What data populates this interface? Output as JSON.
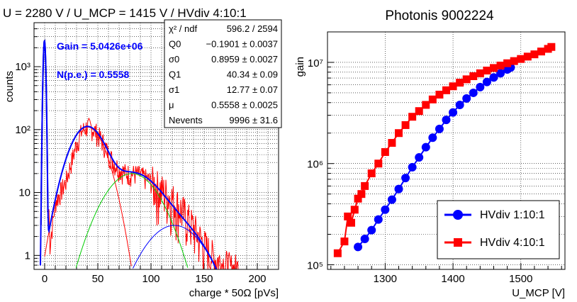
{
  "left": {
    "title": "U = 2280 V / U_MCP = 1415 V / HVdiv 4:10:1",
    "ylabel": "counts",
    "xlabel": "charge * 50Ω  [pVs]",
    "gain_text": "Gain = 5.0426e+06",
    "npe_text": "N(p.e.) = 0.5558",
    "stats": [
      {
        "name": "χ² / ndf",
        "value": "596.2 / 2594"
      },
      {
        "name": "Q0",
        "value": "−0.1901 ± 0.0037"
      },
      {
        "name": "σ0",
        "value": "0.8959 ± 0.0027"
      },
      {
        "name": "Q1",
        "value": "40.34 ± 0.09"
      },
      {
        "name": "σ1",
        "value": "12.77 ± 0.07"
      },
      {
        "name": "μ",
        "value": "0.5558 ± 0.0025"
      },
      {
        "name": "Nevents",
        "value": "9996 ± 31.6"
      }
    ]
  },
  "right": {
    "title": "Photonis 9002224",
    "ylabel": "gain",
    "xlabel": "U_MCP  [V]"
  },
  "colors": {
    "histogram": "#ff0000",
    "total_fit": "#0000ff",
    "gauss0": "#000080",
    "gauss1": "#ff0000",
    "gauss2": "#00cc00",
    "gauss3": "#0000ff",
    "series1": "#0000ff",
    "series2": "#ff0000"
  },
  "chart_data": [
    {
      "type": "line",
      "title": "U = 2280 V / U_MCP = 1415 V / HVdiv 4:10:1",
      "xlabel": "charge * 50Ω  [pVs]",
      "ylabel": "counts",
      "xlim": [
        -10,
        220
      ],
      "ylim": [
        0.6,
        5000
      ],
      "yscale": "log",
      "x_ticks": [
        0,
        50,
        100,
        150,
        200
      ],
      "y_ticks": [
        {
          "value": 1,
          "label": "1"
        },
        {
          "value": 10,
          "label": "10"
        },
        {
          "value": 100,
          "label": "10²"
        },
        {
          "value": 1000,
          "label": "10³"
        }
      ],
      "grid": true,
      "series": [
        {
          "x": [
            -5,
            -3,
            -2,
            -1,
            0,
            1,
            2,
            3,
            5,
            10,
            20,
            25,
            30,
            35,
            40,
            45,
            50,
            55,
            60,
            65,
            70,
            75,
            80,
            85,
            90,
            95,
            100,
            105,
            110,
            115,
            120,
            125,
            130,
            135,
            140,
            145,
            150,
            155,
            160,
            165,
            170,
            175
          ],
          "y": [
            0.6,
            20,
            300,
            1700,
            2600,
            1700,
            300,
            20,
            1.5,
            7,
            15,
            30,
            60,
            95,
            112,
            105,
            85,
            62,
            42,
            30,
            24,
            21,
            20,
            20,
            19,
            17,
            15,
            13,
            11,
            9.5,
            8,
            6.5,
            5,
            3.8,
            2.8,
            2.0,
            1.5,
            1.1,
            0.9,
            0.8,
            0.7,
            0.6
          ]
        }
      ]
    },
    {
      "type": "scatter",
      "title": "Photonis 9002224",
      "xlabel": "U_MCP  [V]",
      "ylabel": "gain",
      "xlim": [
        1215,
        1565
      ],
      "ylim": [
        90000,
        20000000
      ],
      "yscale": "log",
      "x_ticks": [
        1300,
        1400,
        1500
      ],
      "y_ticks": [
        {
          "value": 100000,
          "label": "10⁵"
        },
        {
          "value": 1000000,
          "label": "10⁶"
        },
        {
          "value": 10000000,
          "label": "10⁷"
        }
      ],
      "grid": true,
      "legend_position": "bottom-right",
      "series": [
        {
          "name": "HVdiv  1:10:1",
          "x": [
            1260,
            1270,
            1280,
            1290,
            1300,
            1310,
            1320,
            1330,
            1340,
            1350,
            1360,
            1370,
            1380,
            1390,
            1400,
            1410,
            1420,
            1430,
            1440,
            1450,
            1460,
            1470,
            1480,
            1485
          ],
          "y": [
            150000,
            180000,
            220000,
            280000,
            350000,
            440000,
            560000,
            720000,
            920000,
            1150000,
            1450000,
            1800000,
            2200000,
            2700000,
            3200000,
            3800000,
            4400000,
            5000000,
            5700000,
            6400000,
            7100000,
            7800000,
            8500000,
            8900000
          ]
        },
        {
          "name": "HVdiv  4:10:1",
          "x": [
            1230,
            1240,
            1245,
            1250,
            1255,
            1260,
            1265,
            1270,
            1280,
            1290,
            1300,
            1310,
            1320,
            1330,
            1340,
            1350,
            1360,
            1370,
            1380,
            1390,
            1400,
            1410,
            1420,
            1430,
            1440,
            1450,
            1460,
            1470,
            1480,
            1490,
            1500,
            1510,
            1520,
            1530,
            1540,
            1545
          ],
          "y": [
            130000,
            170000,
            300000,
            260000,
            350000,
            450000,
            500000,
            600000,
            800000,
            1000000,
            1300000,
            1600000,
            2000000,
            2400000,
            2900000,
            3300000,
            3800000,
            4300000,
            4800000,
            5300000,
            5800000,
            6300000,
            6800000,
            7300000,
            7800000,
            8300000,
            8800000,
            9300000,
            9800000,
            10300000,
            10800000,
            11400000,
            12000000,
            12800000,
            13600000,
            14200000
          ]
        }
      ]
    }
  ]
}
